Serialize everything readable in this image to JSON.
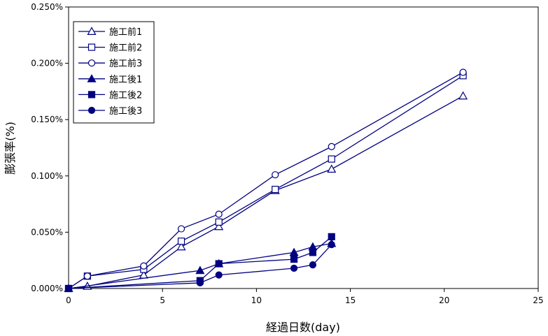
{
  "chart_data": {
    "type": "line",
    "title": "",
    "xlabel": "経過日数(day)",
    "ylabel": "膨張率(%)",
    "xlim": [
      0,
      25
    ],
    "ylim": [
      0,
      0.25
    ],
    "x_ticks": [
      "0",
      "5",
      "10",
      "15",
      "20",
      "25"
    ],
    "y_ticks": [
      "0.000%",
      "0.050%",
      "0.100%",
      "0.150%",
      "0.200%",
      "0.250%"
    ],
    "grid": false,
    "legend_position": "top-left",
    "color": "#000080",
    "series": [
      {
        "name": "施工前1",
        "marker": "triangle-open",
        "x": [
          0,
          1,
          4,
          6,
          8,
          11,
          14,
          21
        ],
        "y": [
          0,
          0.002,
          0.012,
          0.037,
          0.055,
          0.087,
          0.106,
          0.171
        ]
      },
      {
        "name": "施工前2",
        "marker": "square-open",
        "x": [
          0,
          1,
          4,
          6,
          8,
          11,
          14,
          21
        ],
        "y": [
          0,
          0.011,
          0.017,
          0.042,
          0.059,
          0.088,
          0.115,
          0.189
        ]
      },
      {
        "name": "施工前3",
        "marker": "circle-open",
        "x": [
          0,
          1,
          4,
          6,
          8,
          11,
          14,
          21
        ],
        "y": [
          0,
          0.011,
          0.02,
          0.053,
          0.066,
          0.101,
          0.126,
          0.192
        ]
      },
      {
        "name": "施工後1",
        "marker": "triangle-filled",
        "x": [
          0,
          7,
          8,
          12,
          13,
          14
        ],
        "y": [
          0,
          0.016,
          0.022,
          0.032,
          0.037,
          0.04
        ]
      },
      {
        "name": "施工後2",
        "marker": "square-filled",
        "x": [
          0,
          7,
          8,
          12,
          13,
          14
        ],
        "y": [
          0,
          0.007,
          0.022,
          0.026,
          0.032,
          0.046
        ]
      },
      {
        "name": "施工後3",
        "marker": "circle-filled",
        "x": [
          0,
          7,
          8,
          12,
          13,
          14
        ],
        "y": [
          0,
          0.005,
          0.012,
          0.018,
          0.021,
          0.039
        ]
      }
    ]
  }
}
